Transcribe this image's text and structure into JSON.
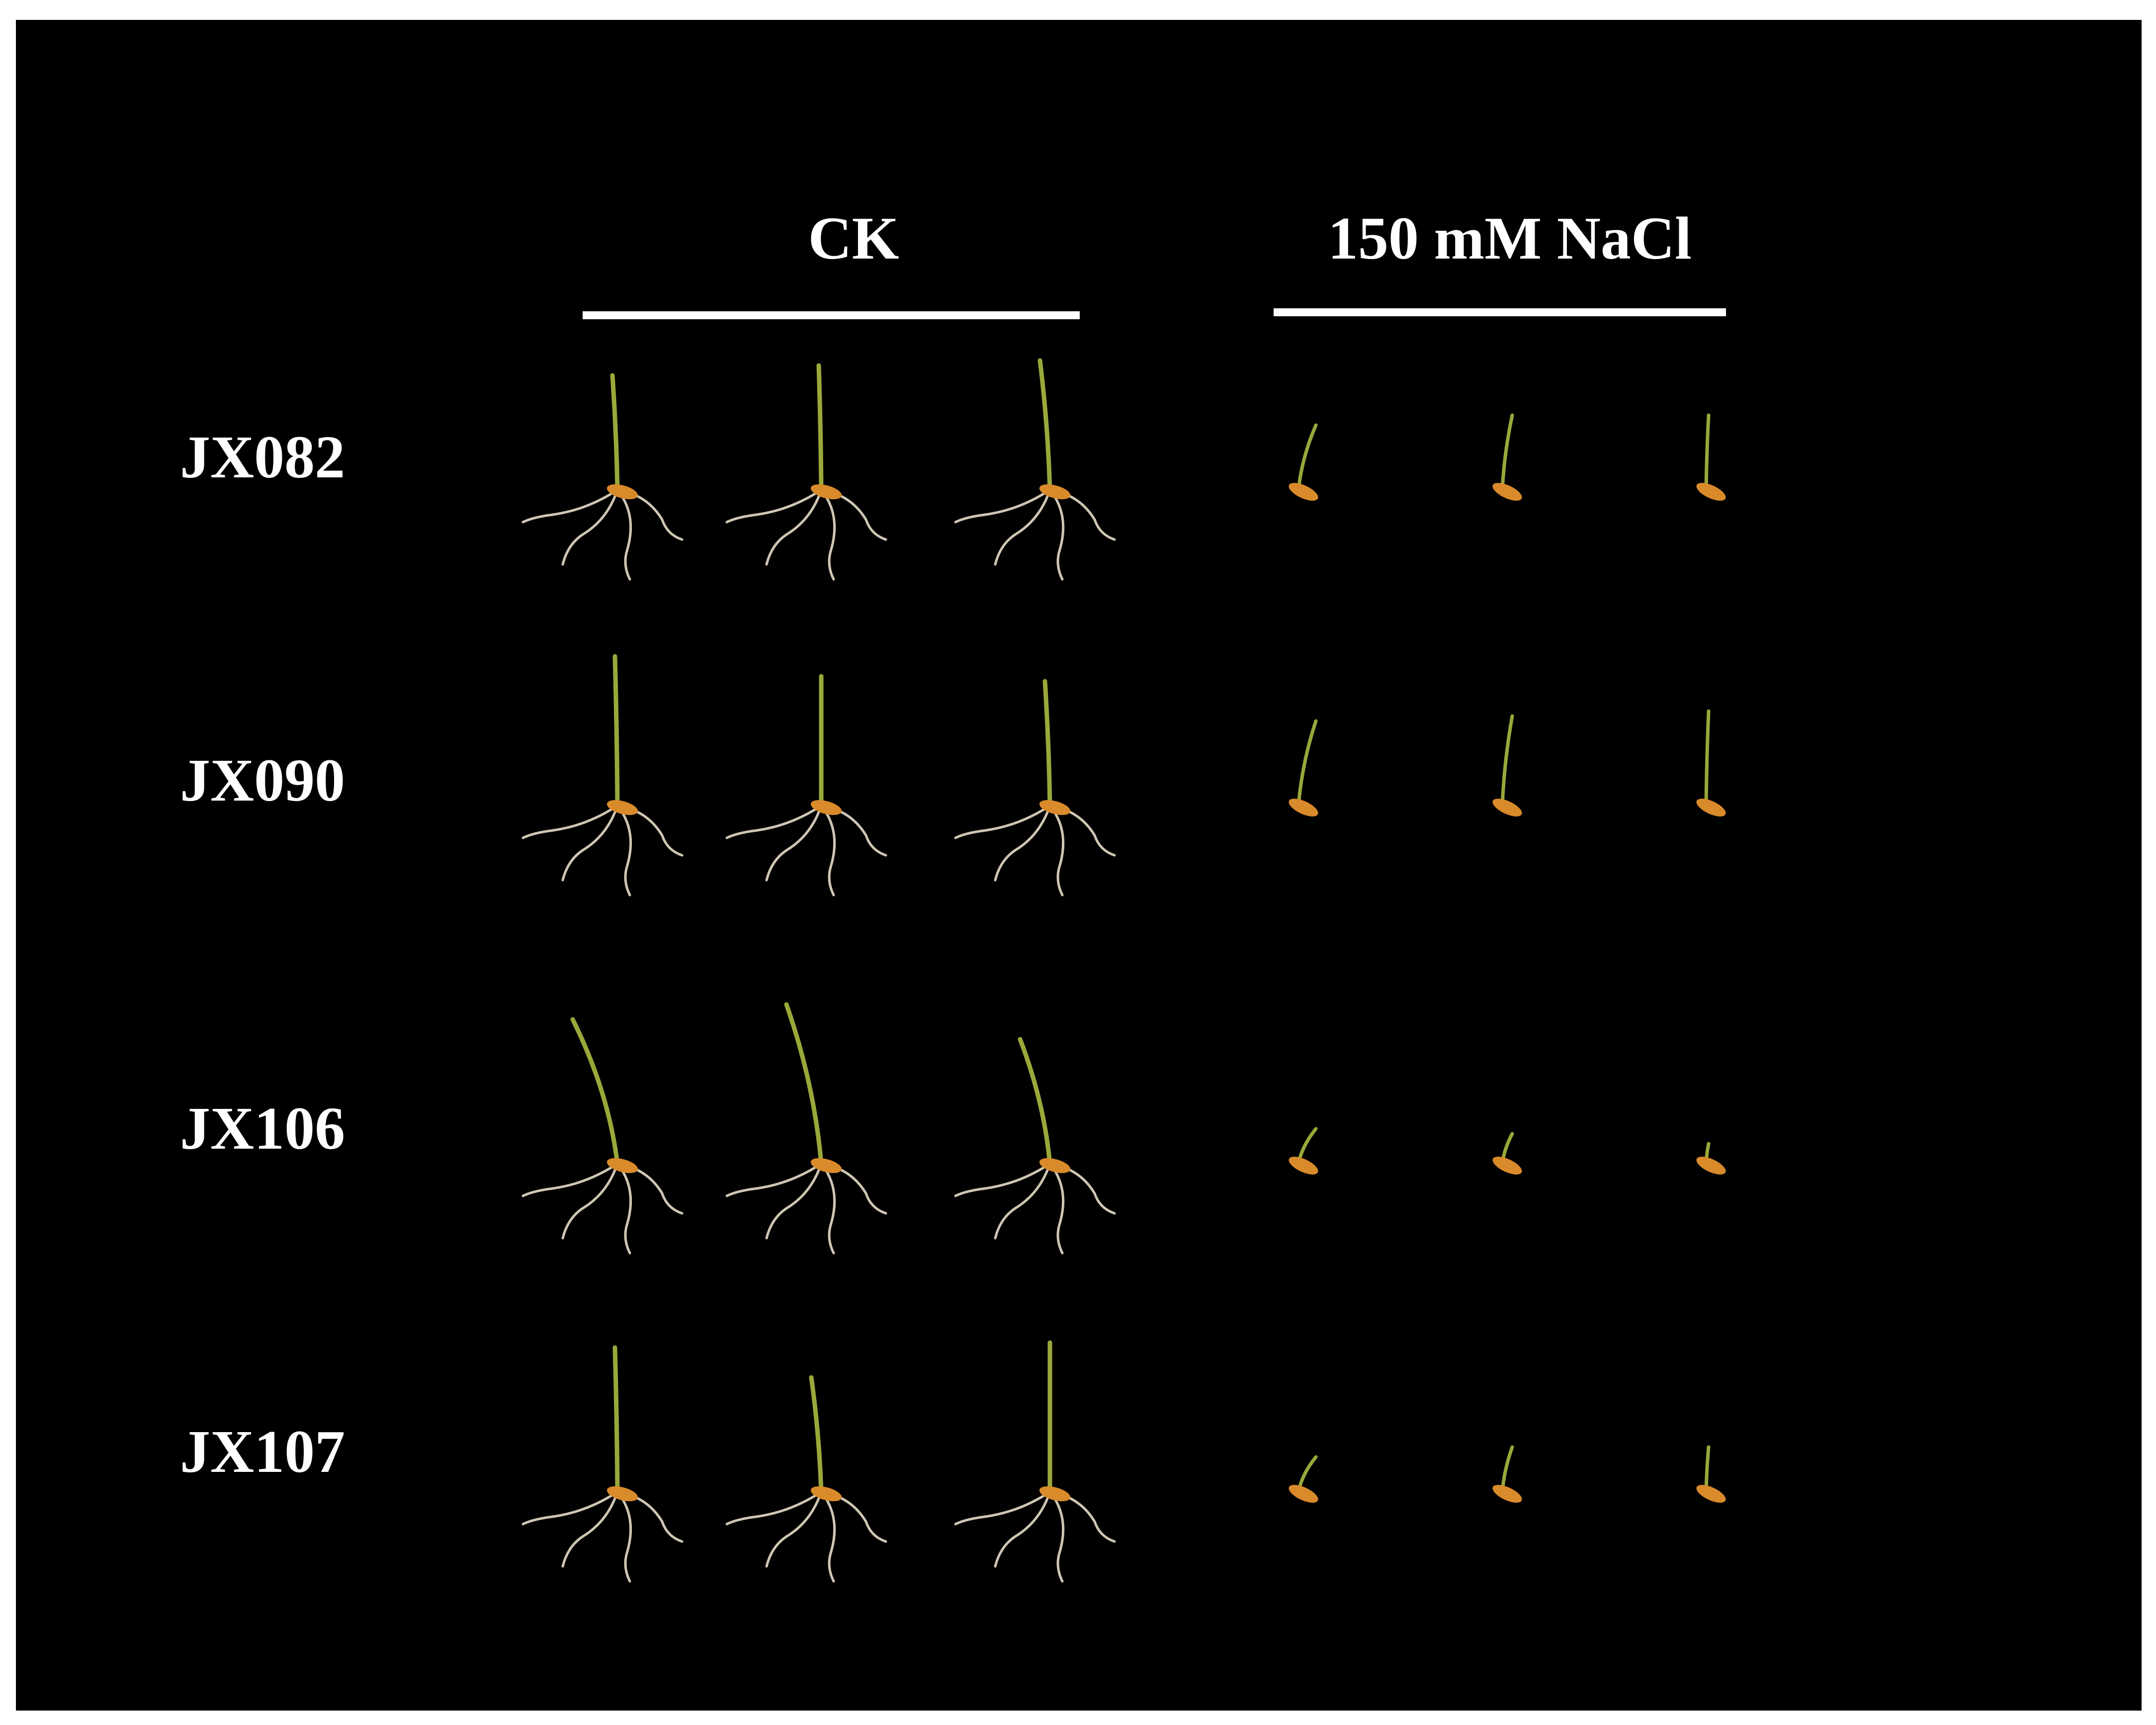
{
  "columns": [
    {
      "label": "CK",
      "treatment": "control"
    },
    {
      "label": "150 mM NaCl",
      "treatment": "salt"
    }
  ],
  "rows": [
    {
      "label": "JX082"
    },
    {
      "label": "JX090"
    },
    {
      "label": "JX106"
    },
    {
      "label": "JX107"
    }
  ],
  "replicates_per_condition": 3,
  "colors": {
    "background": "#000000",
    "text": "#ffffff",
    "shoot": "#9aa83a",
    "seed": "#d98a2b",
    "root": "#cfc6b4"
  }
}
